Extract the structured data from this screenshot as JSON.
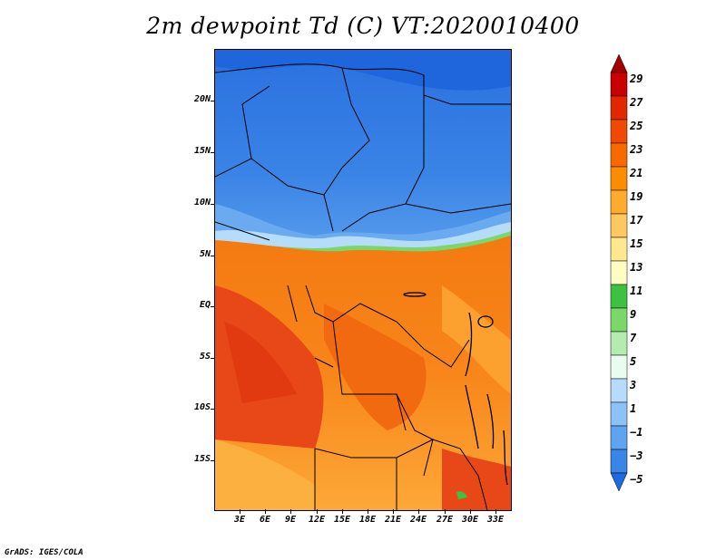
{
  "title": "2m dewpoint Td (C) VT:2020010400",
  "footer": "GrADS: IGES/COLA",
  "map": {
    "lat_ticks": [
      "20N",
      "15N",
      "10N",
      "5N",
      "EQ",
      "5S",
      "10S",
      "15S"
    ],
    "lon_ticks": [
      "3E",
      "6E",
      "9E",
      "12E",
      "15E",
      "18E",
      "21E",
      "24E",
      "27E",
      "30E",
      "33E"
    ]
  },
  "colorbar": {
    "labels": [
      "29",
      "27",
      "25",
      "23",
      "21",
      "19",
      "17",
      "15",
      "13",
      "11",
      "9",
      "7",
      "5",
      "3",
      "1",
      "−1",
      "−3",
      "−5"
    ],
    "colors": [
      "#a50000",
      "#c80000",
      "#e12800",
      "#f04a00",
      "#f86a00",
      "#fc8c00",
      "#fdac30",
      "#fdc860",
      "#fde890",
      "#fffcc4",
      "#3ec040",
      "#7ad86a",
      "#b4ecb0",
      "#e8fcf0",
      "#b6dcfc",
      "#8cc2f6",
      "#5ea4ee",
      "#3a86e6",
      "#1e6ae0"
    ]
  }
}
